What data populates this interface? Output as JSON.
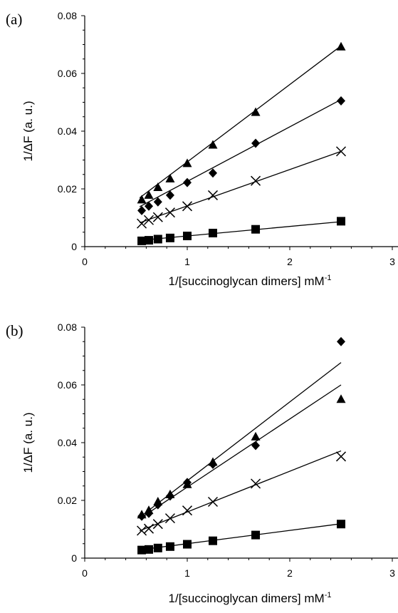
{
  "chart_data": [
    {
      "panel": "(a)",
      "type": "scatter",
      "xlabel": "1/[succinoglycan dimers] mM",
      "xlabel_sup": "-1",
      "ylabel": "1/ΔF (a. u.)",
      "xlim": [
        0,
        3
      ],
      "ylim": [
        0,
        0.08
      ],
      "x_ticks": [
        "0",
        "1",
        "2",
        "3"
      ],
      "y_ticks": [
        "0",
        "0.02",
        "0.04",
        "0.06",
        "0.08"
      ],
      "grid": false,
      "series": [
        {
          "marker": "triangle",
          "x": [
            0.556,
            0.625,
            0.714,
            0.833,
            1.0,
            1.25,
            1.667,
            2.5
          ],
          "y": [
            0.0162,
            0.0178,
            0.0205,
            0.0235,
            0.0288,
            0.0352,
            0.0465,
            0.0692
          ],
          "fit": [
            0.00255,
            0.0268
          ]
        },
        {
          "marker": "diamond",
          "x": [
            0.556,
            0.625,
            0.714,
            0.833,
            1.0,
            1.25,
            1.667,
            2.5
          ],
          "y": [
            0.0125,
            0.014,
            0.0155,
            0.0178,
            0.0222,
            0.0255,
            0.0358,
            0.0505
          ],
          "fit": [
            0.0037,
            0.0189
          ]
        },
        {
          "marker": "cross",
          "x": [
            0.556,
            0.625,
            0.714,
            0.833,
            1.0,
            1.25,
            1.667,
            2.5
          ],
          "y": [
            0.008,
            0.0092,
            0.0102,
            0.0118,
            0.014,
            0.0178,
            0.0228,
            0.033
          ],
          "fit": [
            0.0015,
            0.0126
          ]
        },
        {
          "marker": "square",
          "x": [
            0.556,
            0.625,
            0.714,
            0.833,
            1.0,
            1.25,
            1.667,
            2.5
          ],
          "y": [
            0.002,
            0.0022,
            0.0026,
            0.003,
            0.0037,
            0.0047,
            0.006,
            0.0088
          ],
          "fit": [
            0.0004,
            0.0033
          ]
        }
      ]
    },
    {
      "panel": "(b)",
      "type": "scatter",
      "xlabel": "1/[succinoglycan dimers] mM",
      "xlabel_sup": "-1",
      "ylabel": "1/ΔF (a. u.)",
      "xlim": [
        0,
        3
      ],
      "ylim": [
        0,
        0.08
      ],
      "x_ticks": [
        "0",
        "1",
        "2",
        "3"
      ],
      "y_ticks": [
        "0",
        "0.02",
        "0.04",
        "0.06",
        "0.08"
      ],
      "grid": false,
      "series": [
        {
          "marker": "diamond",
          "x": [
            0.556,
            0.625,
            0.714,
            0.833,
            1.0,
            1.25,
            1.667,
            2.5
          ],
          "y": [
            0.0145,
            0.0155,
            0.0185,
            0.0215,
            0.0262,
            0.0325,
            0.039,
            0.075
          ],
          "fit": [
            -0.0005,
            0.0273
          ]
        },
        {
          "marker": "triangle",
          "x": [
            0.556,
            0.625,
            0.714,
            0.833,
            1.0,
            1.25,
            1.667,
            2.5
          ],
          "y": [
            0.015,
            0.0165,
            0.0195,
            0.022,
            0.0255,
            0.0332,
            0.042,
            0.055
          ],
          "fit": [
            0.001,
            0.0236
          ]
        },
        {
          "marker": "cross",
          "x": [
            0.556,
            0.625,
            0.714,
            0.833,
            1.0,
            1.25,
            1.667,
            2.5
          ],
          "y": [
            0.0095,
            0.0102,
            0.0118,
            0.0138,
            0.0165,
            0.0195,
            0.0258,
            0.0352
          ],
          "fit": [
            0.0019,
            0.0141
          ]
        },
        {
          "marker": "square",
          "x": [
            0.556,
            0.625,
            0.714,
            0.833,
            1.0,
            1.25,
            1.667,
            2.5
          ],
          "y": [
            0.0028,
            0.003,
            0.0035,
            0.004,
            0.0048,
            0.006,
            0.008,
            0.0118
          ],
          "fit": [
            0.0004,
            0.0046
          ]
        }
      ]
    }
  ]
}
